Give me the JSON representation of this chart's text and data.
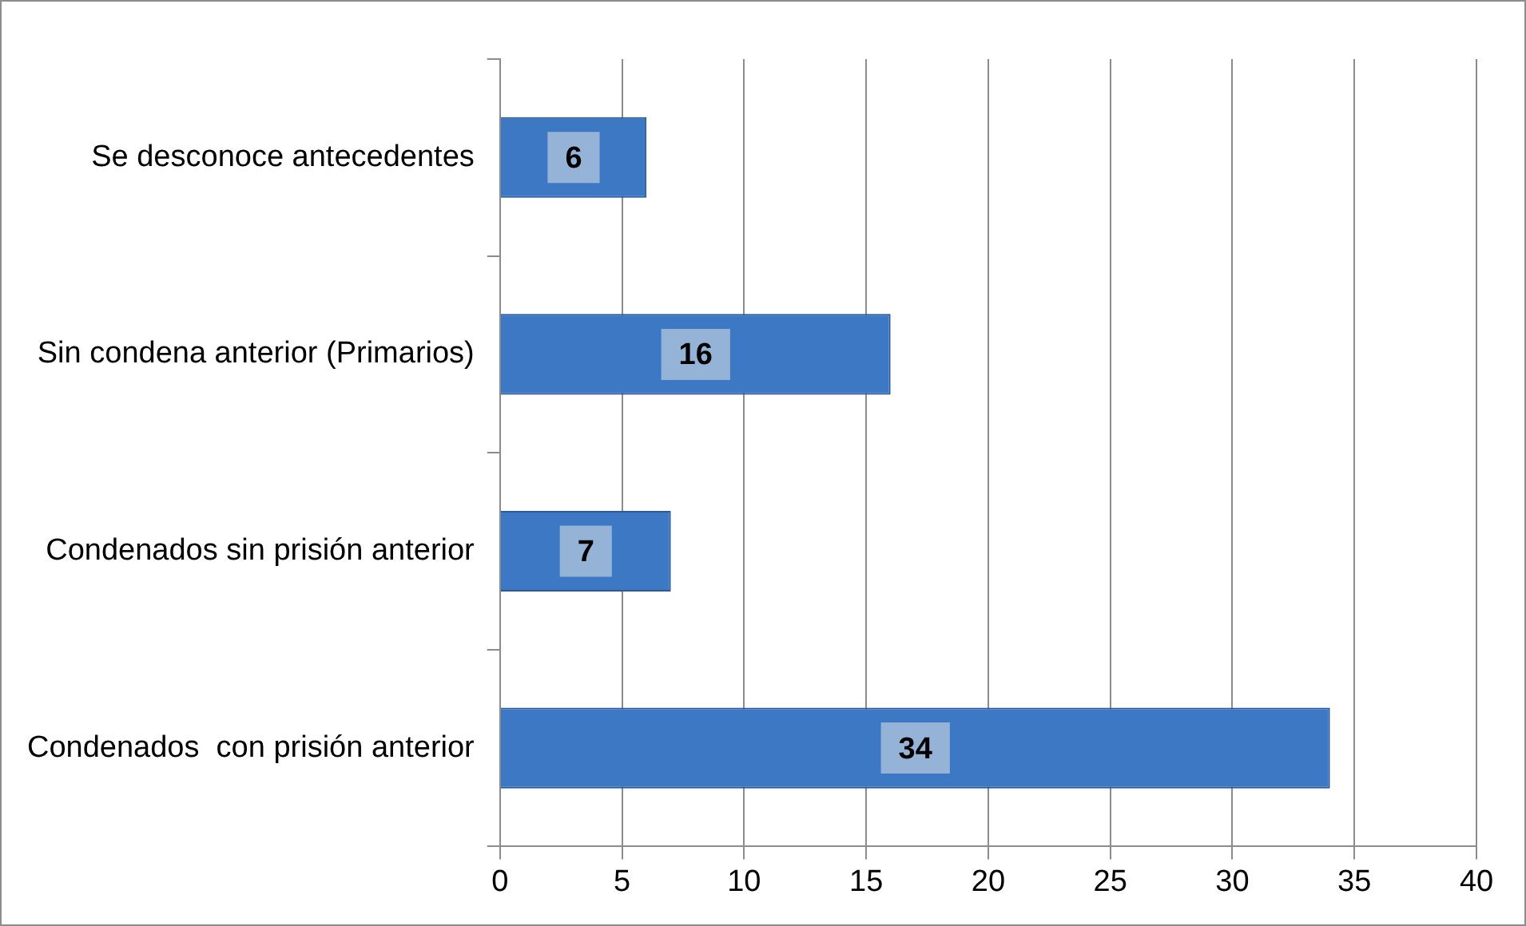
{
  "chart_data": {
    "type": "bar",
    "orientation": "horizontal",
    "categories": [
      "Se desconoce antecedentes",
      "Sin condena anterior (Primarios)",
      "Condenados sin prisión anterior",
      "Condenados  con prisión anterior"
    ],
    "values": [
      6,
      16,
      7,
      34
    ],
    "color": "#3d78c4",
    "xlim": [
      0,
      40
    ],
    "xticks": [
      0,
      5,
      10,
      15,
      20,
      25,
      30,
      35,
      40
    ],
    "grid": "x",
    "data_labels": true
  }
}
